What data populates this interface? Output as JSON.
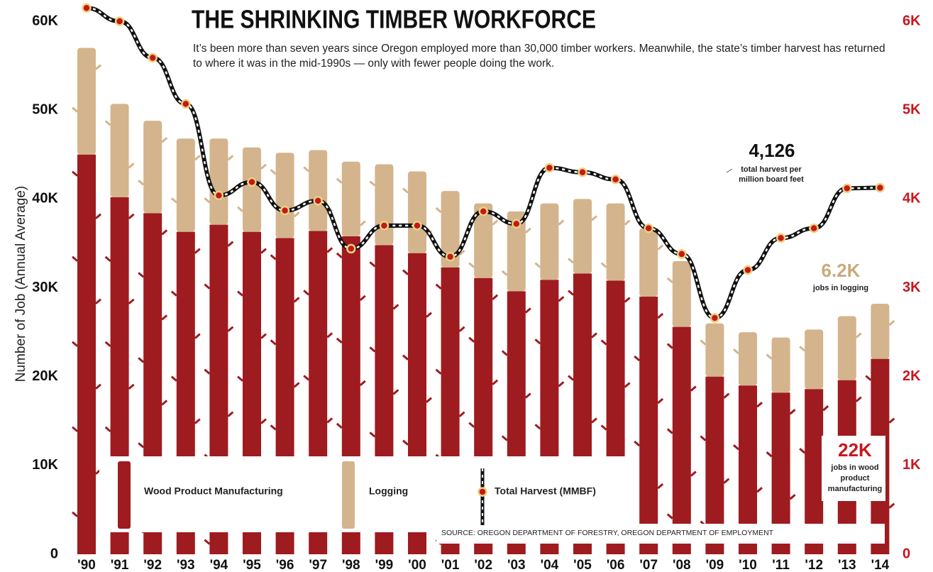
{
  "chart_data": {
    "type": "bar",
    "stacked": true,
    "title": "THE SHRINKING TIMBER WORKFORCE",
    "subtitle": "It’s been more than seven years since Oregon employed more than 30,000 timber workers. Meanwhile, the state’s timber harvest has returned to where it was in the mid-1990s — only with fewer people doing the work.",
    "y_label": "Number of Job (Annual Average)",
    "source": "SOURCE: OREGON DEPARTMENT OF FORESTRY, OREGON DEPARTMENT OF EMPLOYMENT",
    "categories": [
      "'90",
      "'91",
      "'92",
      "'93",
      "'94",
      "'95",
      "'96",
      "'97",
      "'98",
      "'99",
      "'00",
      "'01",
      "'02",
      "'03",
      "'04",
      "'05",
      "'06",
      "'07",
      "'08",
      "'09",
      "'10",
      "'11",
      "'12",
      "'13",
      "'14"
    ],
    "series": [
      {
        "name": "Wood Product Manufacturing",
        "type": "bar",
        "color": "#9e1b1f",
        "values": [
          45000,
          40200,
          38400,
          36300,
          37100,
          36300,
          35600,
          36400,
          35800,
          34800,
          33900,
          32300,
          31100,
          29600,
          30900,
          31600,
          30800,
          29000,
          25600,
          20000,
          19000,
          18200,
          18600,
          19600,
          22000
        ],
        "value_labels": [
          null,
          null,
          null,
          null,
          null,
          null,
          null,
          null,
          null,
          null,
          null,
          null,
          null,
          null,
          null,
          null,
          null,
          null,
          null,
          null,
          null,
          null,
          null,
          null,
          "22K"
        ]
      },
      {
        "name": "Logging",
        "type": "bar",
        "color": "#d4b48c",
        "values": [
          12000,
          10500,
          10400,
          10500,
          9700,
          9500,
          9600,
          9100,
          8400,
          9100,
          9200,
          8600,
          8400,
          9000,
          8600,
          8400,
          8700,
          7700,
          7400,
          6000,
          6000,
          6200,
          6700,
          7200,
          6200
        ],
        "value_labels": [
          null,
          null,
          null,
          null,
          null,
          null,
          null,
          null,
          null,
          null,
          null,
          null,
          null,
          null,
          null,
          null,
          null,
          null,
          null,
          null,
          null,
          null,
          null,
          null,
          "6.2K"
        ]
      },
      {
        "name": "Total Harvest (MMBF)",
        "type": "line",
        "axis": "y2",
        "color": "#111111",
        "values": [
          6150,
          6000,
          5590,
          5070,
          4040,
          4190,
          3870,
          3980,
          3440,
          3700,
          3700,
          3350,
          3860,
          3720,
          4350,
          4300,
          4220,
          3670,
          3380,
          2660,
          3200,
          3560,
          3670,
          4120,
          4126
        ],
        "value_labels": [
          null,
          null,
          null,
          null,
          null,
          null,
          null,
          null,
          null,
          null,
          null,
          null,
          null,
          null,
          null,
          null,
          null,
          null,
          null,
          null,
          null,
          null,
          null,
          null,
          "4,126"
        ]
      }
    ],
    "annotations": [
      "jobs in wood product manufacturing",
      "jobs in logging",
      "total harvest per million board feet"
    ],
    "ylim": [
      0,
      60000
    ],
    "yticks": [
      {
        "value": 0,
        "label": "0"
      },
      {
        "value": 10000,
        "label": "10K"
      },
      {
        "value": 20000,
        "label": "20K"
      },
      {
        "value": 30000,
        "label": "30K"
      },
      {
        "value": 40000,
        "label": "40K"
      },
      {
        "value": 50000,
        "label": "50K"
      },
      {
        "value": 60000,
        "label": "60K"
      }
    ],
    "y2lim": [
      0,
      6000
    ],
    "y2ticks": [
      {
        "value": 0,
        "label": "0"
      },
      {
        "value": 1000,
        "label": "1K"
      },
      {
        "value": 2000,
        "label": "2K"
      },
      {
        "value": 3000,
        "label": "3K"
      },
      {
        "value": 4000,
        "label": "4K"
      },
      {
        "value": 5000,
        "label": "5K"
      },
      {
        "value": 6000,
        "label": "6K"
      }
    ],
    "y2_color": "#c8161d"
  }
}
